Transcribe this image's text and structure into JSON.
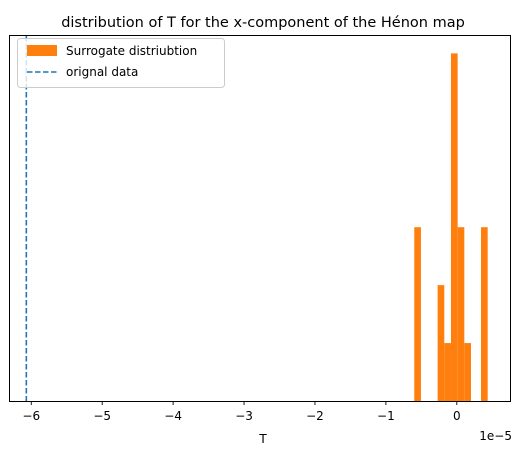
{
  "chart_data": {
    "type": "bar",
    "title": "distribution of T for the x-component of the Hénon map",
    "xlabel": "T",
    "ylabel": "",
    "x_offset_label": "1e−5",
    "xlim": [
      -6.3,
      0.75
    ],
    "ylim": [
      0,
      3.15
    ],
    "y_ticks_visible": false,
    "grid": false,
    "x_ticks": [
      {
        "value": -6,
        "label": "−6"
      },
      {
        "value": -5,
        "label": "−5"
      },
      {
        "value": -4,
        "label": "−4"
      },
      {
        "value": -3,
        "label": "−3"
      },
      {
        "value": -2,
        "label": "−2"
      },
      {
        "value": -1,
        "label": "−1"
      },
      {
        "value": 0,
        "label": "0"
      }
    ],
    "histogram": {
      "name": "Surrogate distriubtion",
      "color": "#ff7f0e",
      "bin_width": 0.0941,
      "bins": [
        {
          "x0": -0.6,
          "count": 1.5
        },
        {
          "x0": -0.2706,
          "count": 1
        },
        {
          "x0": -0.1765,
          "count": 0.5
        },
        {
          "x0": -0.0824,
          "count": 3
        },
        {
          "x0": 0.0118,
          "count": 1.5
        },
        {
          "x0": 0.1059,
          "count": 0.5
        },
        {
          "x0": 0.3412,
          "count": 1.5
        }
      ]
    },
    "vline": {
      "name": "orignal data",
      "x": -6.07,
      "color": "#1f77b4",
      "style": "dashed"
    },
    "legend": {
      "position": "top-left",
      "entries": [
        {
          "label": "Surrogate distriubtion",
          "kind": "patch",
          "color": "#ff7f0e"
        },
        {
          "label": "orignal data",
          "kind": "dashed-line",
          "color": "#1f77b4"
        }
      ]
    }
  }
}
